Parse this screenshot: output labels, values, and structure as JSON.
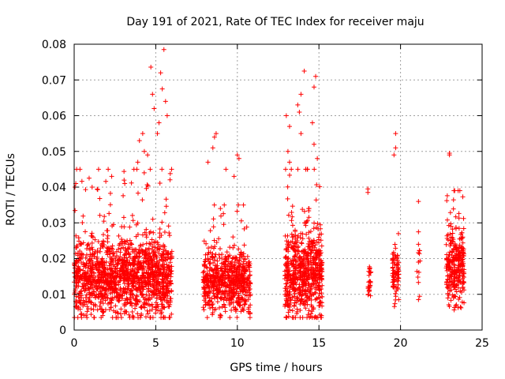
{
  "chart_data": {
    "type": "scatter",
    "title": "Day 191 of 2021, Rate Of TEC Index for receiver maju",
    "xlabel": "GPS time / hours",
    "ylabel": "ROTI / TECUs",
    "xlim": [
      0,
      25
    ],
    "ylim": [
      0,
      0.08
    ],
    "x_ticks": [
      "0",
      "5",
      "10",
      "15",
      "20",
      "25"
    ],
    "y_ticks": [
      "0",
      "0.01",
      "0.02",
      "0.03",
      "0.04",
      "0.05",
      "0.06",
      "0.07",
      "0.08"
    ],
    "grid": true,
    "marker": "+",
    "color": "#ff0000",
    "series": [
      {
        "name": "ROTI",
        "clusters": [
          {
            "x_range": [
              0.0,
              6.0
            ],
            "count": 1500,
            "y_center": 0.013,
            "spread": 0.006,
            "y_max": 0.045
          },
          {
            "x_range": [
              7.9,
              10.8
            ],
            "count": 650,
            "y_center": 0.012,
            "spread": 0.005,
            "y_max": 0.035
          },
          {
            "x_range": [
              12.9,
              15.2
            ],
            "count": 650,
            "y_center": 0.014,
            "spread": 0.007,
            "y_max": 0.045
          },
          {
            "x_range": [
              18.0,
              18.2
            ],
            "count": 25,
            "y_center": 0.013,
            "spread": 0.003,
            "y_max": 0.025
          },
          {
            "x_range": [
              19.5,
              19.9
            ],
            "count": 80,
            "y_center": 0.015,
            "spread": 0.004,
            "y_max": 0.027
          },
          {
            "x_range": [
              21.0,
              21.2
            ],
            "count": 10,
            "y_center": 0.015,
            "spread": 0.005,
            "y_max": 0.036
          },
          {
            "x_range": [
              22.8,
              23.9
            ],
            "count": 300,
            "y_center": 0.016,
            "spread": 0.006,
            "y_max": 0.039
          }
        ],
        "outliers": [
          {
            "x": 4.7,
            "y": 0.0736
          },
          {
            "x": 5.5,
            "y": 0.0785
          },
          {
            "x": 5.3,
            "y": 0.072
          },
          {
            "x": 5.4,
            "y": 0.0675
          },
          {
            "x": 4.8,
            "y": 0.066
          },
          {
            "x": 5.6,
            "y": 0.064
          },
          {
            "x": 4.9,
            "y": 0.062
          },
          {
            "x": 5.7,
            "y": 0.06
          },
          {
            "x": 5.2,
            "y": 0.058
          },
          {
            "x": 4.2,
            "y": 0.055
          },
          {
            "x": 5.1,
            "y": 0.055
          },
          {
            "x": 4.0,
            "y": 0.053
          },
          {
            "x": 4.3,
            "y": 0.05
          },
          {
            "x": 3.9,
            "y": 0.047
          },
          {
            "x": 4.5,
            "y": 0.049
          },
          {
            "x": 8.7,
            "y": 0.055
          },
          {
            "x": 8.6,
            "y": 0.054
          },
          {
            "x": 8.5,
            "y": 0.051
          },
          {
            "x": 10.0,
            "y": 0.049
          },
          {
            "x": 10.1,
            "y": 0.048
          },
          {
            "x": 8.2,
            "y": 0.047
          },
          {
            "x": 9.3,
            "y": 0.045
          },
          {
            "x": 9.8,
            "y": 0.043
          },
          {
            "x": 14.1,
            "y": 0.0725
          },
          {
            "x": 14.8,
            "y": 0.071
          },
          {
            "x": 14.7,
            "y": 0.068
          },
          {
            "x": 13.9,
            "y": 0.066
          },
          {
            "x": 13.7,
            "y": 0.063
          },
          {
            "x": 13.8,
            "y": 0.061
          },
          {
            "x": 13.0,
            "y": 0.06
          },
          {
            "x": 14.6,
            "y": 0.058
          },
          {
            "x": 13.2,
            "y": 0.057
          },
          {
            "x": 13.9,
            "y": 0.055
          },
          {
            "x": 14.7,
            "y": 0.052
          },
          {
            "x": 13.1,
            "y": 0.05
          },
          {
            "x": 14.9,
            "y": 0.048
          },
          {
            "x": 13.2,
            "y": 0.047
          },
          {
            "x": 18.0,
            "y": 0.0395
          },
          {
            "x": 18.0,
            "y": 0.0385
          },
          {
            "x": 19.7,
            "y": 0.055
          },
          {
            "x": 19.7,
            "y": 0.051
          },
          {
            "x": 19.6,
            "y": 0.049
          },
          {
            "x": 21.1,
            "y": 0.036
          },
          {
            "x": 21.1,
            "y": 0.0275
          },
          {
            "x": 21.1,
            "y": 0.024
          },
          {
            "x": 21.1,
            "y": 0.019
          },
          {
            "x": 21.1,
            "y": 0.0085
          },
          {
            "x": 23.0,
            "y": 0.0495
          },
          {
            "x": 23.0,
            "y": 0.049
          },
          {
            "x": 0.1,
            "y": 0.041
          },
          {
            "x": 0.05,
            "y": 0.04
          },
          {
            "x": 1.1,
            "y": 0.04
          },
          {
            "x": 2.3,
            "y": 0.043
          },
          {
            "x": 3.1,
            "y": 0.041
          }
        ]
      }
    ]
  }
}
